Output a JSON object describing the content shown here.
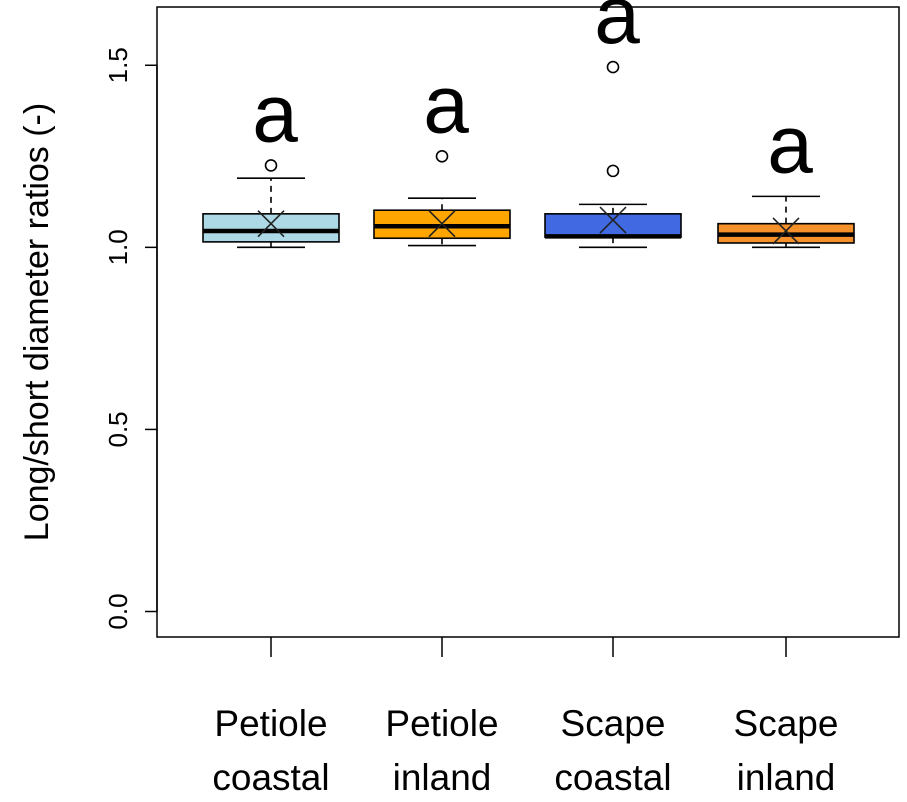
{
  "chart_data": {
    "type": "box",
    "ylabel": "Long/short diameter ratios (-)",
    "ylim": [
      -0.07,
      1.66
    ],
    "yticks": [
      "0.0",
      "0.5",
      "1.0",
      "1.5"
    ],
    "grid": false,
    "legend": "none",
    "categories": [
      {
        "line1": "Petiole",
        "line2": "coastal"
      },
      {
        "line1": "Petiole",
        "line2": "inland"
      },
      {
        "line1": "Scape",
        "line2": "coastal"
      },
      {
        "line1": "Scape",
        "line2": "inland"
      }
    ],
    "boxes": [
      {
        "whisker_low": 1.0,
        "q1": 1.015,
        "median": 1.045,
        "q3": 1.092,
        "whisker_high": 1.19,
        "mean": 1.065,
        "outliers": [
          1.225
        ],
        "color": "#add8e6",
        "letter": "a"
      },
      {
        "whisker_low": 1.005,
        "q1": 1.025,
        "median": 1.058,
        "q3": 1.102,
        "whisker_high": 1.135,
        "mean": 1.065,
        "outliers": [
          1.25
        ],
        "color": "#ffa500",
        "letter": "a"
      },
      {
        "whisker_low": 1.0,
        "q1": 1.028,
        "median": 1.03,
        "q3": 1.092,
        "whisker_high": 1.118,
        "mean": 1.075,
        "outliers": [
          1.21,
          1.495
        ],
        "color": "#4169e1",
        "letter": "a"
      },
      {
        "whisker_low": 1.0,
        "q1": 1.012,
        "median": 1.035,
        "q3": 1.065,
        "whisker_high": 1.14,
        "mean": 1.045,
        "outliers": [],
        "color": "#f5902a",
        "letter": "a"
      }
    ]
  }
}
